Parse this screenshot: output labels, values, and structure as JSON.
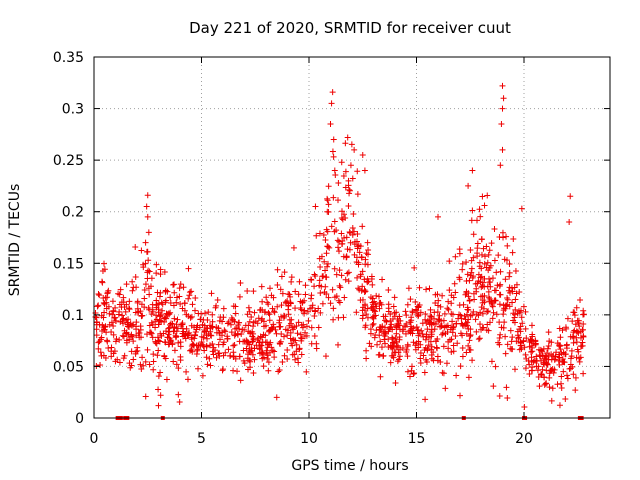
{
  "chart_data": {
    "type": "scatter",
    "title": "Day 221 of 2020, SRMTID for receiver cuut",
    "xlabel": "GPS time / hours",
    "ylabel": "SRMTID / TECUs",
    "xlim": [
      0,
      24
    ],
    "ylim": [
      0,
      0.35
    ],
    "grid": true,
    "marker": "+",
    "color": "#ee0000",
    "x_ticks": [
      {
        "value": 0,
        "label": "0"
      },
      {
        "value": 5,
        "label": "5"
      },
      {
        "value": 10,
        "label": "10"
      },
      {
        "value": 15,
        "label": "15"
      },
      {
        "value": 20,
        "label": "20"
      }
    ],
    "y_ticks": [
      {
        "value": 0,
        "label": "0"
      },
      {
        "value": 0.05,
        "label": "0.05"
      },
      {
        "value": 0.1,
        "label": "0.1"
      },
      {
        "value": 0.15,
        "label": "0.15"
      },
      {
        "value": 0.2,
        "label": "0.2"
      },
      {
        "value": 0.25,
        "label": "0.25"
      },
      {
        "value": 0.3,
        "label": "0.3"
      },
      {
        "value": 0.35,
        "label": "0.35"
      }
    ],
    "trend": {
      "description": "approximate envelope of the dense point cloud (hour, typical SRMTID, spread)",
      "hours": [
        0,
        0.5,
        1,
        1.5,
        2,
        2.5,
        3,
        3.5,
        4,
        4.5,
        5,
        5.5,
        6,
        6.5,
        7,
        7.5,
        8,
        8.5,
        9,
        9.5,
        10,
        10.5,
        11,
        11.5,
        12,
        12.5,
        13,
        13.5,
        14,
        14.5,
        15,
        15.5,
        16,
        16.5,
        17,
        17.5,
        18,
        18.5,
        19,
        19.5,
        20,
        20.5,
        21,
        21.5,
        22,
        22.5,
        23
      ],
      "centers": [
        0.085,
        0.095,
        0.085,
        0.09,
        0.1,
        0.11,
        0.09,
        0.095,
        0.09,
        0.085,
        0.08,
        0.08,
        0.075,
        0.08,
        0.075,
        0.08,
        0.085,
        0.09,
        0.09,
        0.085,
        0.1,
        0.13,
        0.17,
        0.17,
        0.19,
        0.13,
        0.1,
        0.085,
        0.08,
        0.08,
        0.09,
        0.08,
        0.09,
        0.1,
        0.11,
        0.125,
        0.13,
        0.12,
        0.12,
        0.1,
        0.075,
        0.06,
        0.05,
        0.055,
        0.065,
        0.075,
        0.08
      ],
      "spreads": [
        0.025,
        0.03,
        0.025,
        0.03,
        0.035,
        0.04,
        0.03,
        0.03,
        0.03,
        0.025,
        0.022,
        0.022,
        0.02,
        0.025,
        0.022,
        0.025,
        0.025,
        0.028,
        0.03,
        0.025,
        0.035,
        0.045,
        0.05,
        0.05,
        0.045,
        0.04,
        0.03,
        0.025,
        0.025,
        0.028,
        0.03,
        0.028,
        0.03,
        0.035,
        0.04,
        0.045,
        0.045,
        0.04,
        0.05,
        0.035,
        0.02,
        0.018,
        0.015,
        0.02,
        0.025,
        0.025,
        0.025
      ],
      "start_hour": 0.05,
      "end_hour": 22.8
    },
    "highlight_points": [
      {
        "x": 11.1,
        "y": 0.316
      },
      {
        "x": 11.05,
        "y": 0.305
      },
      {
        "x": 11.0,
        "y": 0.285
      },
      {
        "x": 11.15,
        "y": 0.27
      },
      {
        "x": 11.8,
        "y": 0.272
      },
      {
        "x": 12.1,
        "y": 0.26
      },
      {
        "x": 11.95,
        "y": 0.245
      },
      {
        "x": 12.5,
        "y": 0.255
      },
      {
        "x": 12.6,
        "y": 0.24
      },
      {
        "x": 11.2,
        "y": 0.24
      },
      {
        "x": 19.0,
        "y": 0.322
      },
      {
        "x": 19.05,
        "y": 0.31
      },
      {
        "x": 19.0,
        "y": 0.3
      },
      {
        "x": 18.95,
        "y": 0.285
      },
      {
        "x": 19.0,
        "y": 0.26
      },
      {
        "x": 18.9,
        "y": 0.245
      },
      {
        "x": 17.6,
        "y": 0.24
      },
      {
        "x": 17.4,
        "y": 0.225
      },
      {
        "x": 2.5,
        "y": 0.216
      },
      {
        "x": 2.45,
        "y": 0.205
      },
      {
        "x": 2.5,
        "y": 0.195
      },
      {
        "x": 2.55,
        "y": 0.18
      },
      {
        "x": 2.4,
        "y": 0.17
      },
      {
        "x": 22.15,
        "y": 0.215
      },
      {
        "x": 22.1,
        "y": 0.19
      },
      {
        "x": 16.0,
        "y": 0.195
      },
      {
        "x": 19.9,
        "y": 0.203
      },
      {
        "x": 10.3,
        "y": 0.205
      },
      {
        "x": 9.3,
        "y": 0.165
      },
      {
        "x": 3.0,
        "y": 0.012
      },
      {
        "x": 3.1,
        "y": 0.022
      },
      {
        "x": 8.5,
        "y": 0.02
      },
      {
        "x": 15.4,
        "y": 0.018
      }
    ],
    "zero_points": [
      {
        "x": 1.1,
        "y": 0
      },
      {
        "x": 1.25,
        "y": 0
      },
      {
        "x": 1.45,
        "y": 0
      },
      {
        "x": 1.55,
        "y": 0
      },
      {
        "x": 3.2,
        "y": 0
      },
      {
        "x": 17.2,
        "y": 0
      },
      {
        "x": 20.0,
        "y": 0
      },
      {
        "x": 20.05,
        "y": 0
      },
      {
        "x": 22.6,
        "y": 0
      },
      {
        "x": 22.68,
        "y": 0
      }
    ]
  }
}
